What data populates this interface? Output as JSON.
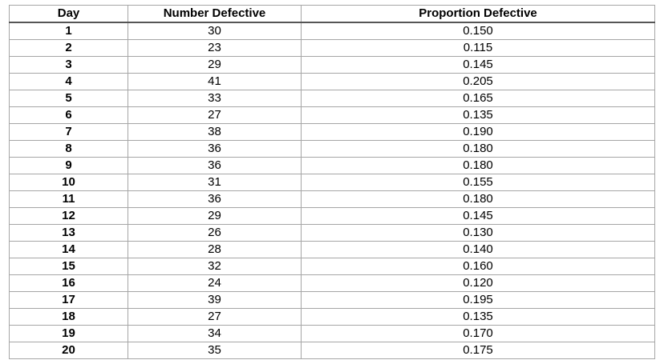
{
  "table": {
    "headers": [
      "Day",
      "Number Defective",
      "Proportion Defective"
    ],
    "rows": [
      [
        "1",
        "30",
        "0.150"
      ],
      [
        "2",
        "23",
        "0.115"
      ],
      [
        "3",
        "29",
        "0.145"
      ],
      [
        "4",
        "41",
        "0.205"
      ],
      [
        "5",
        "33",
        "0.165"
      ],
      [
        "6",
        "27",
        "0.135"
      ],
      [
        "7",
        "38",
        "0.190"
      ],
      [
        "8",
        "36",
        "0.180"
      ],
      [
        "9",
        "36",
        "0.180"
      ],
      [
        "10",
        "31",
        "0.155"
      ],
      [
        "11",
        "36",
        "0.180"
      ],
      [
        "12",
        "29",
        "0.145"
      ],
      [
        "13",
        "26",
        "0.130"
      ],
      [
        "14",
        "28",
        "0.140"
      ],
      [
        "15",
        "32",
        "0.160"
      ],
      [
        "16",
        "24",
        "0.120"
      ],
      [
        "17",
        "39",
        "0.195"
      ],
      [
        "18",
        "27",
        "0.135"
      ],
      [
        "19",
        "34",
        "0.170"
      ],
      [
        "20",
        "35",
        "0.175"
      ]
    ]
  }
}
